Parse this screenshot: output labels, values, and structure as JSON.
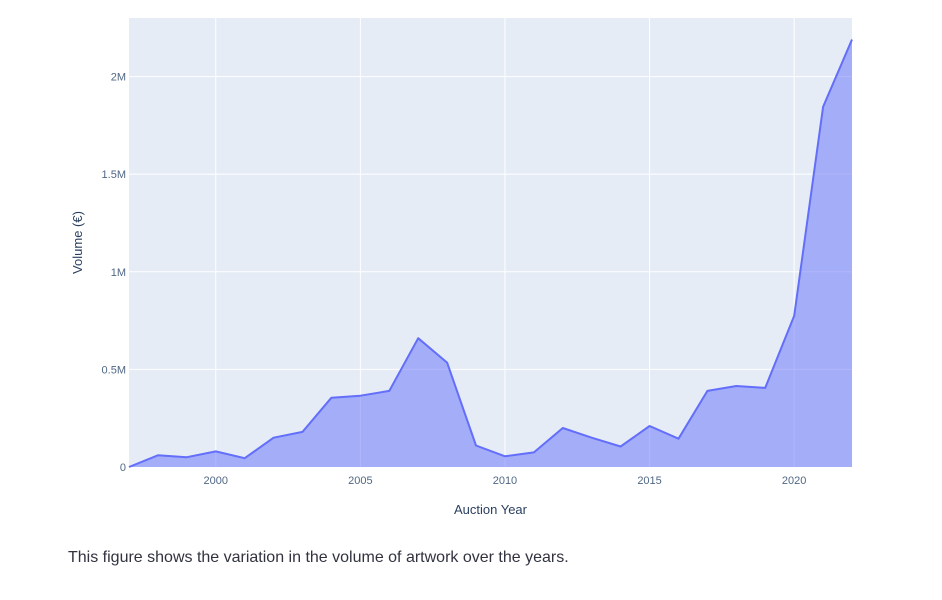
{
  "colors": {
    "plot_bg": "#e5ecf6",
    "grid": "#ffffff",
    "line": "#636efa",
    "fill": "rgba(99,110,250,0.5)",
    "tick_text": "#506784",
    "title_text": "#2a3f5f",
    "caption_text": "#31333f"
  },
  "caption": "This figure shows the variation in the volume of artwork over the years.",
  "chart_data": {
    "type": "area",
    "title": "",
    "xlabel": "Auction Year",
    "ylabel": "Volume (€)",
    "xlim": [
      1997,
      2022
    ],
    "ylim": [
      0,
      2300000
    ],
    "grid": true,
    "x": [
      1997,
      1998,
      1999,
      2000,
      2001,
      2002,
      2003,
      2004,
      2005,
      2006,
      2007,
      2008,
      2009,
      2010,
      2011,
      2012,
      2013,
      2014,
      2015,
      2016,
      2017,
      2018,
      2019,
      2020,
      2021,
      2022
    ],
    "series": [
      {
        "values": [
          0,
          60000,
          50000,
          80000,
          45000,
          150000,
          180000,
          355000,
          365000,
          390000,
          660000,
          535000,
          110000,
          55000,
          75000,
          200000,
          150000,
          105000,
          210000,
          145000,
          390000,
          415000,
          405000,
          775000,
          1845000,
          2190000
        ]
      }
    ],
    "x_ticks": [
      {
        "value": 2000,
        "label": "2000"
      },
      {
        "value": 2005,
        "label": "2005"
      },
      {
        "value": 2010,
        "label": "2010"
      },
      {
        "value": 2015,
        "label": "2015"
      },
      {
        "value": 2020,
        "label": "2020"
      }
    ],
    "y_ticks": [
      {
        "value": 0,
        "label": "0"
      },
      {
        "value": 500000,
        "label": "0.5M"
      },
      {
        "value": 1000000,
        "label": "1M"
      },
      {
        "value": 1500000,
        "label": "1.5M"
      },
      {
        "value": 2000000,
        "label": "2M"
      }
    ]
  }
}
